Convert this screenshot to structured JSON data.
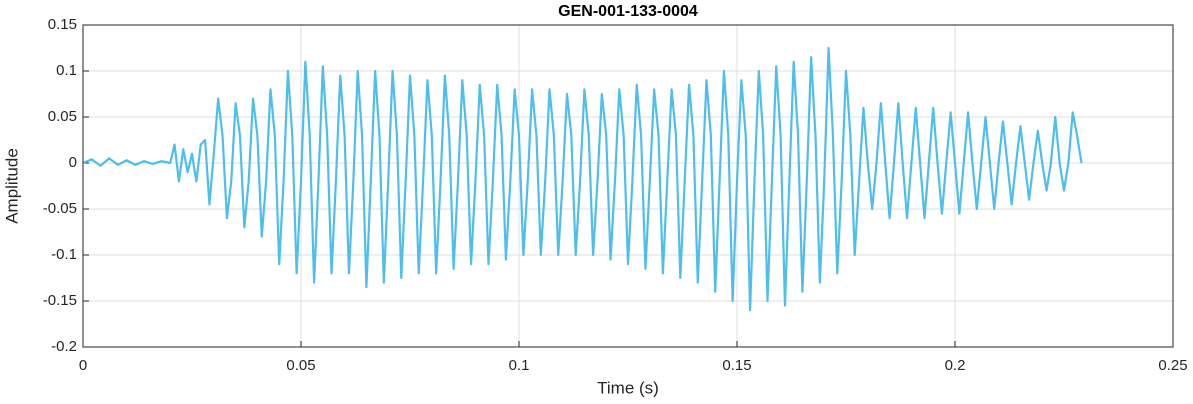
{
  "chart_data": {
    "type": "line",
    "title": "GEN-001-133-0004",
    "xlabel": "Time (s)",
    "ylabel": "Amplitude",
    "color": "#4dbeee",
    "grid": true,
    "xlim": [
      0,
      0.25
    ],
    "xticks": [
      0,
      0.05,
      0.1,
      0.15,
      0.2,
      0.25
    ],
    "ylim": [
      -0.2,
      0.15
    ],
    "yticks": [
      -0.2,
      -0.15,
      -0.1,
      -0.05,
      0,
      0.05,
      0.1,
      0.15
    ],
    "x": [
      0,
      0.002,
      0.004,
      0.006,
      0.008,
      0.01,
      0.012,
      0.014,
      0.016,
      0.018,
      0.02,
      0.021,
      0.022,
      0.023,
      0.024,
      0.025,
      0.026,
      0.027,
      0.028,
      0.029,
      0.03,
      0.031,
      0.032,
      0.033,
      0.034,
      0.035,
      0.036,
      0.037,
      0.038,
      0.039,
      0.04,
      0.041,
      0.042,
      0.043,
      0.044,
      0.045,
      0.046,
      0.047,
      0.048,
      0.049,
      0.05,
      0.051,
      0.052,
      0.053,
      0.054,
      0.055,
      0.056,
      0.057,
      0.058,
      0.059,
      0.06,
      0.061,
      0.062,
      0.063,
      0.064,
      0.065,
      0.066,
      0.067,
      0.068,
      0.069,
      0.07,
      0.071,
      0.072,
      0.073,
      0.074,
      0.075,
      0.076,
      0.077,
      0.078,
      0.079,
      0.08,
      0.081,
      0.082,
      0.083,
      0.084,
      0.085,
      0.086,
      0.087,
      0.088,
      0.089,
      0.09,
      0.091,
      0.092,
      0.093,
      0.094,
      0.095,
      0.096,
      0.097,
      0.098,
      0.099,
      0.1,
      0.101,
      0.102,
      0.103,
      0.104,
      0.105,
      0.106,
      0.107,
      0.108,
      0.109,
      0.11,
      0.111,
      0.112,
      0.113,
      0.114,
      0.115,
      0.116,
      0.117,
      0.118,
      0.119,
      0.12,
      0.121,
      0.122,
      0.123,
      0.124,
      0.125,
      0.126,
      0.127,
      0.128,
      0.129,
      0.13,
      0.131,
      0.132,
      0.133,
      0.134,
      0.135,
      0.136,
      0.137,
      0.138,
      0.139,
      0.14,
      0.141,
      0.142,
      0.143,
      0.144,
      0.145,
      0.146,
      0.147,
      0.148,
      0.149,
      0.15,
      0.151,
      0.152,
      0.153,
      0.154,
      0.155,
      0.156,
      0.157,
      0.158,
      0.159,
      0.16,
      0.161,
      0.162,
      0.163,
      0.164,
      0.165,
      0.166,
      0.167,
      0.168,
      0.169,
      0.17,
      0.171,
      0.172,
      0.173,
      0.174,
      0.175,
      0.176,
      0.177,
      0.178,
      0.179,
      0.18,
      0.181,
      0.182,
      0.183,
      0.184,
      0.185,
      0.186,
      0.187,
      0.188,
      0.189,
      0.19,
      0.191,
      0.192,
      0.193,
      0.194,
      0.195,
      0.196,
      0.197,
      0.198,
      0.199,
      0.2,
      0.201,
      0.202,
      0.203,
      0.204,
      0.205,
      0.206,
      0.207,
      0.208,
      0.209,
      0.21,
      0.211,
      0.212,
      0.213,
      0.214,
      0.215,
      0.216,
      0.217,
      0.218,
      0.219,
      0.22,
      0.221,
      0.222,
      0.223,
      0.224,
      0.225,
      0.226,
      0.227,
      0.228,
      0.229
    ],
    "values": [
      0,
      0.004,
      -0.003,
      0.005,
      -0.002,
      0.003,
      -0.002,
      0.002,
      -0.001,
      0.002,
      0,
      0.02,
      -0.02,
      0.015,
      -0.01,
      0.01,
      -0.02,
      0.02,
      0.025,
      -0.045,
      0.01,
      0.07,
      0.03,
      -0.06,
      -0.02,
      0.065,
      0.03,
      -0.07,
      -0.02,
      0.07,
      0.03,
      -0.08,
      -0.02,
      0.08,
      0.03,
      -0.11,
      -0.02,
      0.1,
      0.03,
      -0.12,
      -0.02,
      0.11,
      0.03,
      -0.13,
      -0.02,
      0.105,
      0.03,
      -0.12,
      -0.02,
      0.095,
      0.03,
      -0.12,
      -0.02,
      0.1,
      0.03,
      -0.135,
      -0.02,
      0.1,
      0.03,
      -0.13,
      -0.02,
      0.1,
      0.03,
      -0.125,
      -0.02,
      0.095,
      0.03,
      -0.12,
      -0.02,
      0.09,
      0.03,
      -0.12,
      -0.02,
      0.095,
      0.03,
      -0.115,
      -0.02,
      0.09,
      0.03,
      -0.11,
      -0.02,
      0.085,
      0.03,
      -0.11,
      -0.02,
      0.085,
      0.03,
      -0.105,
      -0.02,
      0.08,
      0.03,
      -0.1,
      -0.02,
      0.08,
      0.03,
      -0.1,
      -0.02,
      0.08,
      0.03,
      -0.1,
      -0.02,
      0.075,
      0.03,
      -0.1,
      -0.02,
      0.08,
      0.03,
      -0.1,
      -0.02,
      0.075,
      0.03,
      -0.105,
      -0.02,
      0.08,
      0.03,
      -0.11,
      -0.02,
      0.085,
      0.03,
      -0.115,
      -0.02,
      0.08,
      0.03,
      -0.12,
      -0.02,
      0.08,
      0.03,
      -0.125,
      -0.02,
      0.085,
      0.03,
      -0.13,
      -0.02,
      0.09,
      0.03,
      -0.14,
      -0.02,
      0.1,
      0.03,
      -0.15,
      -0.02,
      0.09,
      0.03,
      -0.16,
      -0.02,
      0.1,
      0.03,
      -0.15,
      -0.02,
      0.105,
      0.03,
      -0.155,
      -0.02,
      0.11,
      0.03,
      -0.14,
      -0.02,
      0.115,
      0.03,
      -0.13,
      -0.02,
      0.125,
      0.03,
      -0.12,
      -0.02,
      0.1,
      0.03,
      -0.1,
      -0.02,
      0.06,
      0,
      -0.05,
      0,
      0.065,
      0,
      -0.06,
      0,
      0.065,
      0,
      -0.06,
      0,
      0.06,
      0,
      -0.06,
      0,
      0.06,
      0,
      -0.055,
      0,
      0.055,
      0,
      -0.055,
      0,
      0.055,
      0,
      -0.05,
      0,
      0.05,
      0,
      -0.05,
      0,
      0.045,
      0,
      -0.045,
      0,
      0.04,
      0,
      -0.04,
      0,
      0.035,
      0,
      -0.03,
      0,
      0.05,
      0,
      -0.03,
      0,
      0.055,
      0.03,
      0
    ]
  }
}
